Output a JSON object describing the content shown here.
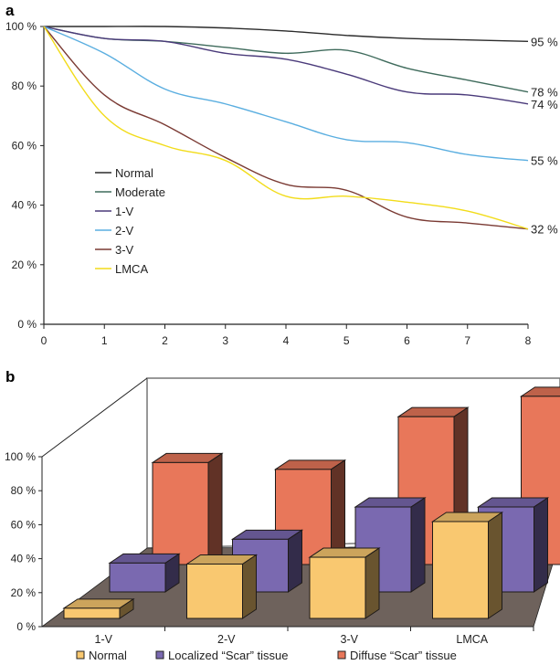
{
  "chart_data": [
    {
      "panel": "a",
      "type": "line",
      "title": "",
      "xlabel": "",
      "ylabel": "",
      "x": [
        0,
        1,
        2,
        3,
        4,
        5,
        6,
        7,
        8
      ],
      "xticks": [
        "0",
        "1",
        "2",
        "3",
        "4",
        "5",
        "6",
        "7",
        "8"
      ],
      "xlim": [
        0,
        8
      ],
      "ylim": [
        0,
        100
      ],
      "yticks": [
        "0 %",
        "20 %",
        "40 %",
        "60 %",
        "80 %",
        "100 %"
      ],
      "grid": false,
      "legend_position": "center-left",
      "series": [
        {
          "name": "Normal",
          "color": "#2b2b2b",
          "values": [
            100,
            100,
            100,
            99.5,
            98.5,
            97,
            96,
            95.5,
            95
          ],
          "end_label": "95 %"
        },
        {
          "name": "Moderate",
          "color": "#3f6b5c",
          "values": [
            100,
            96,
            95,
            93,
            91,
            92,
            86,
            82,
            78
          ],
          "end_label": "78 %"
        },
        {
          "name": "1-V",
          "color": "#4a3a7a",
          "values": [
            100,
            96,
            95,
            91,
            89,
            84,
            78,
            77,
            74
          ],
          "end_label": "74 %"
        },
        {
          "name": "2-V",
          "color": "#5aaee0",
          "values": [
            100,
            91,
            79,
            74,
            68,
            62,
            61,
            57,
            55
          ],
          "end_label": "55 %"
        },
        {
          "name": "3-V",
          "color": "#7a3a33",
          "values": [
            100,
            77,
            67,
            56,
            47,
            45,
            36,
            34,
            32
          ],
          "end_label": "32 %"
        },
        {
          "name": "LMCA",
          "color": "#f2dc1a",
          "values": [
            100,
            70,
            60,
            55,
            43,
            43,
            41,
            38,
            32
          ],
          "end_label": "32 %"
        }
      ]
    },
    {
      "panel": "b",
      "type": "bar",
      "style": "3d-clustered-depth",
      "title": "",
      "xlabel": "",
      "ylabel": "",
      "categories": [
        "1-V",
        "2-V",
        "3-V",
        "LMCA"
      ],
      "ylim": [
        0,
        100
      ],
      "yticks": [
        "0 %",
        "20 %",
        "40 %",
        "60 %",
        "80 %",
        "100 %"
      ],
      "grid": false,
      "legend_position": "bottom",
      "series": [
        {
          "name": "Normal",
          "legend_label": "Normal",
          "color": "#f9c870",
          "values": [
            6,
            32,
            36,
            57
          ]
        },
        {
          "name": "Localized “Scar” tissue",
          "legend_label": "Localized “Scar” tissue",
          "color": "#7a69b0",
          "values": [
            17,
            31,
            50,
            50
          ]
        },
        {
          "name": "Diffuse “Scar” tissue",
          "legend_label": "Diffuse “Scar” tissue",
          "color": "#e8775a",
          "values": [
            60,
            56,
            87,
            99
          ]
        }
      ],
      "floor_color": "#6e625c"
    }
  ],
  "panels": {
    "a_label": "a",
    "b_label": "b"
  }
}
